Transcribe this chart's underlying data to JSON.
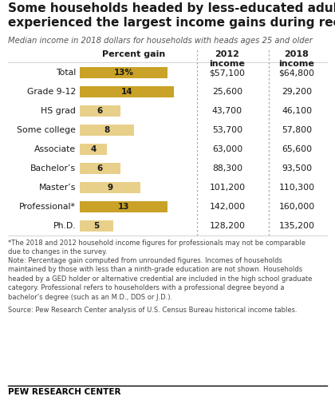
{
  "title": "Some households headed by less-educated adults have\nexperienced the largest income gains during recovery",
  "subtitle": "Median income in 2018 dollars for households with heads ages 25 and older",
  "col1_header": "Percent gain",
  "col2_header": "2012\nincome",
  "col3_header": "2018\nincome",
  "categories": [
    "Total",
    "Grade 9-12",
    "HS grad",
    "Some college",
    "Associate",
    "Bachelor’s",
    "Master’s",
    "Professional*",
    "Ph.D."
  ],
  "bar_values": [
    13,
    14,
    6,
    8,
    4,
    6,
    9,
    13,
    5
  ],
  "bar_labels": [
    "13%",
    "14",
    "6",
    "8",
    "4",
    "6",
    "9",
    "13",
    "5"
  ],
  "bar_color_normal": "#e8d08a",
  "bar_color_highlight": "#c9a227",
  "bar_color_highlight_indices": [
    0,
    1,
    7
  ],
  "income_2012": [
    "$57,100",
    "25,600",
    "43,700",
    "53,700",
    "63,000",
    "88,300",
    "101,200",
    "142,000",
    "128,200"
  ],
  "income_2018": [
    "$64,800",
    "29,200",
    "46,100",
    "57,800",
    "65,600",
    "93,500",
    "110,300",
    "160,000",
    "135,200"
  ],
  "footnote1": "*The 2018 and 2012 household income figures for professionals may not be comparable\ndue to changes in the survey.",
  "footnote2": "Note: Percentage gain computed from unrounded figures. Incomes of households\nmaintained by those with less than a ninth-grade education are not shown. Households\nheaded by a GED holder or alternative credential are included in the high school graduate\ncategory. Professional refers to householders with a professional degree beyond a\nbachelor’s degree (such as an M.D., DDS or J.D.).",
  "footnote3": "Source: Pew Research Center analysis of U.S. Census Bureau historical income tables.",
  "branding": "PEW RESEARCH CENTER",
  "bg_color": "#ffffff",
  "bar_max": 16
}
